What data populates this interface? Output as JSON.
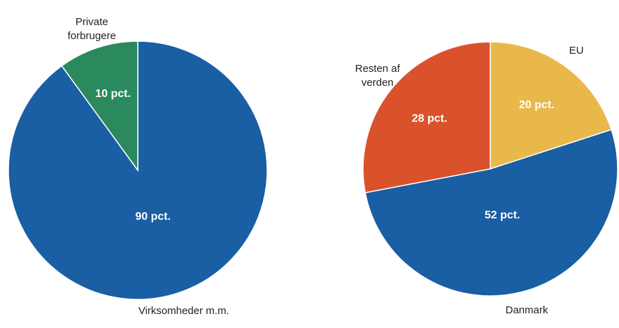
{
  "chart_data": [
    {
      "type": "pie",
      "categories": [
        "Virksomheder m.m.",
        "Private\nforbrugere"
      ],
      "values": [
        90,
        10
      ],
      "value_labels": [
        "90 pct.",
        "10 pct."
      ],
      "colors": [
        "#1a5ea4",
        "#2a8a5e"
      ]
    },
    {
      "type": "pie",
      "categories": [
        "EU",
        "Danmark",
        "Resten af\nverden"
      ],
      "values": [
        20,
        52,
        28
      ],
      "value_labels": [
        "20 pct.",
        "52 pct.",
        "28 pct."
      ],
      "colors": [
        "#e8b94a",
        "#1a5ea4",
        "#d9522b"
      ]
    }
  ]
}
